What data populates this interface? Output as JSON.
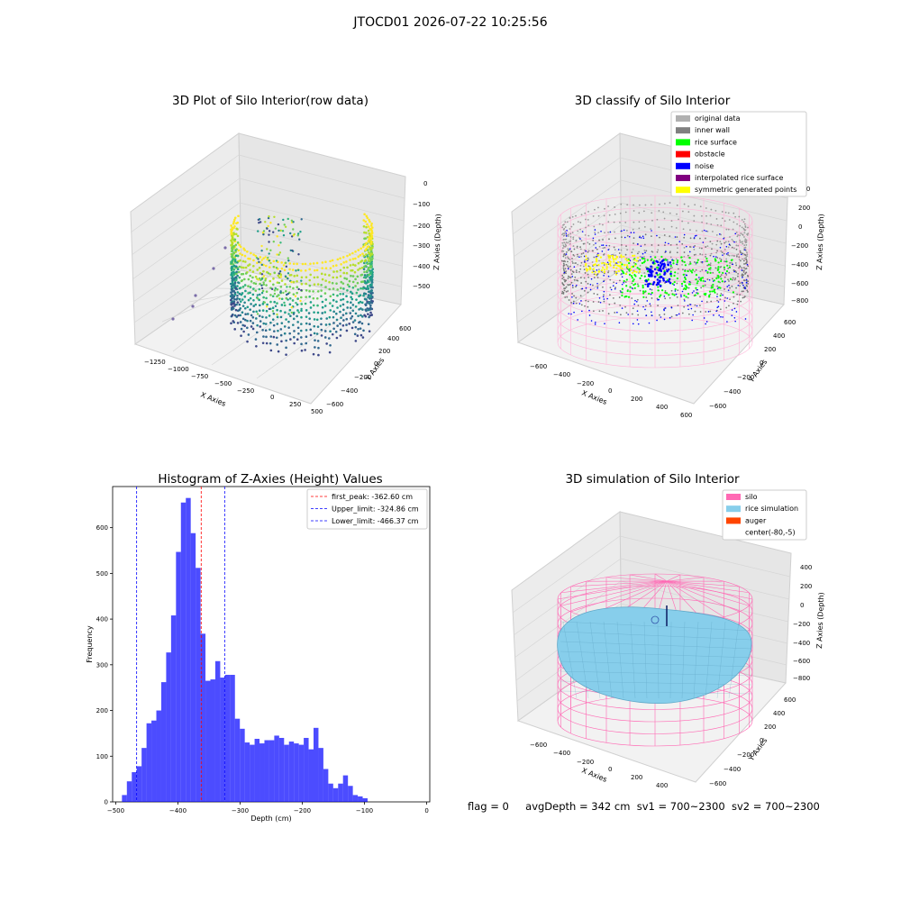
{
  "suptitle": "JTOCD01 2026-07-22 10:25:56",
  "footer": {
    "flag": "flag = 0",
    "avg_depth": "avgDepth = 342 cm",
    "sv1": "sv1 = 700~2300",
    "sv2": "sv2 = 700~2300"
  },
  "panels": {
    "raw": {
      "title": "3D Plot of Silo Interior(row data)",
      "xlabel": "X Axies",
      "ylabel": "Y Axies",
      "zlabel": "Z Axies (Depth)",
      "xticks": [
        "−1250",
        "−1000",
        "−750",
        "−500",
        "−250",
        "0",
        "250",
        "500"
      ],
      "yticks": [
        "−600",
        "−400",
        "−200",
        "0",
        "200",
        "400",
        "600"
      ],
      "zticks": [
        "0",
        "−100",
        "−200",
        "−300",
        "−400",
        "−500"
      ]
    },
    "classify": {
      "title": "3D classify of Silo Interior",
      "xlabel": "X Axies",
      "ylabel": "Y Axies",
      "zlabel": "Z Axies (Depth)",
      "xticks": [
        "−600",
        "−400",
        "−200",
        "0",
        "200",
        "400",
        "600"
      ],
      "yticks": [
        "−600",
        "−400",
        "−200",
        "0",
        "200",
        "400",
        "600"
      ],
      "zticks": [
        "400",
        "200",
        "0",
        "−200",
        "−400",
        "−600",
        "−800"
      ],
      "legend": [
        {
          "label": "original data",
          "color": "#b0b0b0"
        },
        {
          "label": "inner wall",
          "color": "#808080"
        },
        {
          "label": "rice surface",
          "color": "#00ff00"
        },
        {
          "label": "obstacle",
          "color": "#ff0000"
        },
        {
          "label": "noise",
          "color": "#0000ff"
        },
        {
          "label": "interpolated rice surface",
          "color": "#800080"
        },
        {
          "label": "symmetric generated points",
          "color": "#ffff00"
        }
      ]
    },
    "simulation": {
      "title": "3D simulation of Silo Interior",
      "xlabel": "X Axies",
      "ylabel": "Y Axies",
      "zlabel": "Z Axies (Depth)",
      "xticks": [
        "−600",
        "−400",
        "−200",
        "0",
        "200",
        "400"
      ],
      "yticks": [
        "−600",
        "−400",
        "−200",
        "0",
        "200",
        "400",
        "600"
      ],
      "zticks": [
        "400",
        "200",
        "0",
        "−200",
        "−400",
        "−600",
        "−800"
      ],
      "legend": [
        {
          "label": "silo",
          "color": "#ff69b4"
        },
        {
          "label": "rice simulation",
          "color": "#87ceeb"
        },
        {
          "label": "auger",
          "color": "#ff4500"
        },
        {
          "label": "center(-80,-5)",
          "color": ""
        }
      ]
    }
  },
  "chart_data": {
    "type": "bar",
    "title": "Histogram of Z-Axies (Height) Values",
    "xlabel": "Depth (cm)",
    "ylabel": "Frequency",
    "xlim": [
      -505,
      5
    ],
    "ylim": [
      0,
      690
    ],
    "xticks": [
      -500,
      -400,
      -300,
      -200,
      -100,
      0
    ],
    "yticks": [
      0,
      100,
      200,
      300,
      400,
      500,
      600
    ],
    "bar_color": "#0000ff",
    "bin_start": -490,
    "bin_width": 7.9,
    "values": [
      15,
      45,
      65,
      78,
      118,
      172,
      178,
      200,
      262,
      327,
      408,
      547,
      655,
      665,
      588,
      512,
      368,
      265,
      268,
      308,
      272,
      278,
      278,
      182,
      160,
      130,
      125,
      138,
      128,
      135,
      135,
      145,
      140,
      125,
      132,
      128,
      125,
      140,
      115,
      162,
      118,
      72,
      40,
      30,
      40,
      58,
      35,
      15,
      12,
      8
    ],
    "vlines": [
      {
        "label": "first_peak: -362.60 cm",
        "value": -362.6,
        "color": "#ff0000"
      },
      {
        "label": "Upper_limit: -324.86 cm",
        "value": -324.86,
        "color": "#0000ff"
      },
      {
        "label": "Lower_limit: -466.37 cm",
        "value": -466.37,
        "color": "#0000ff"
      }
    ],
    "legend_position": "top-right"
  }
}
